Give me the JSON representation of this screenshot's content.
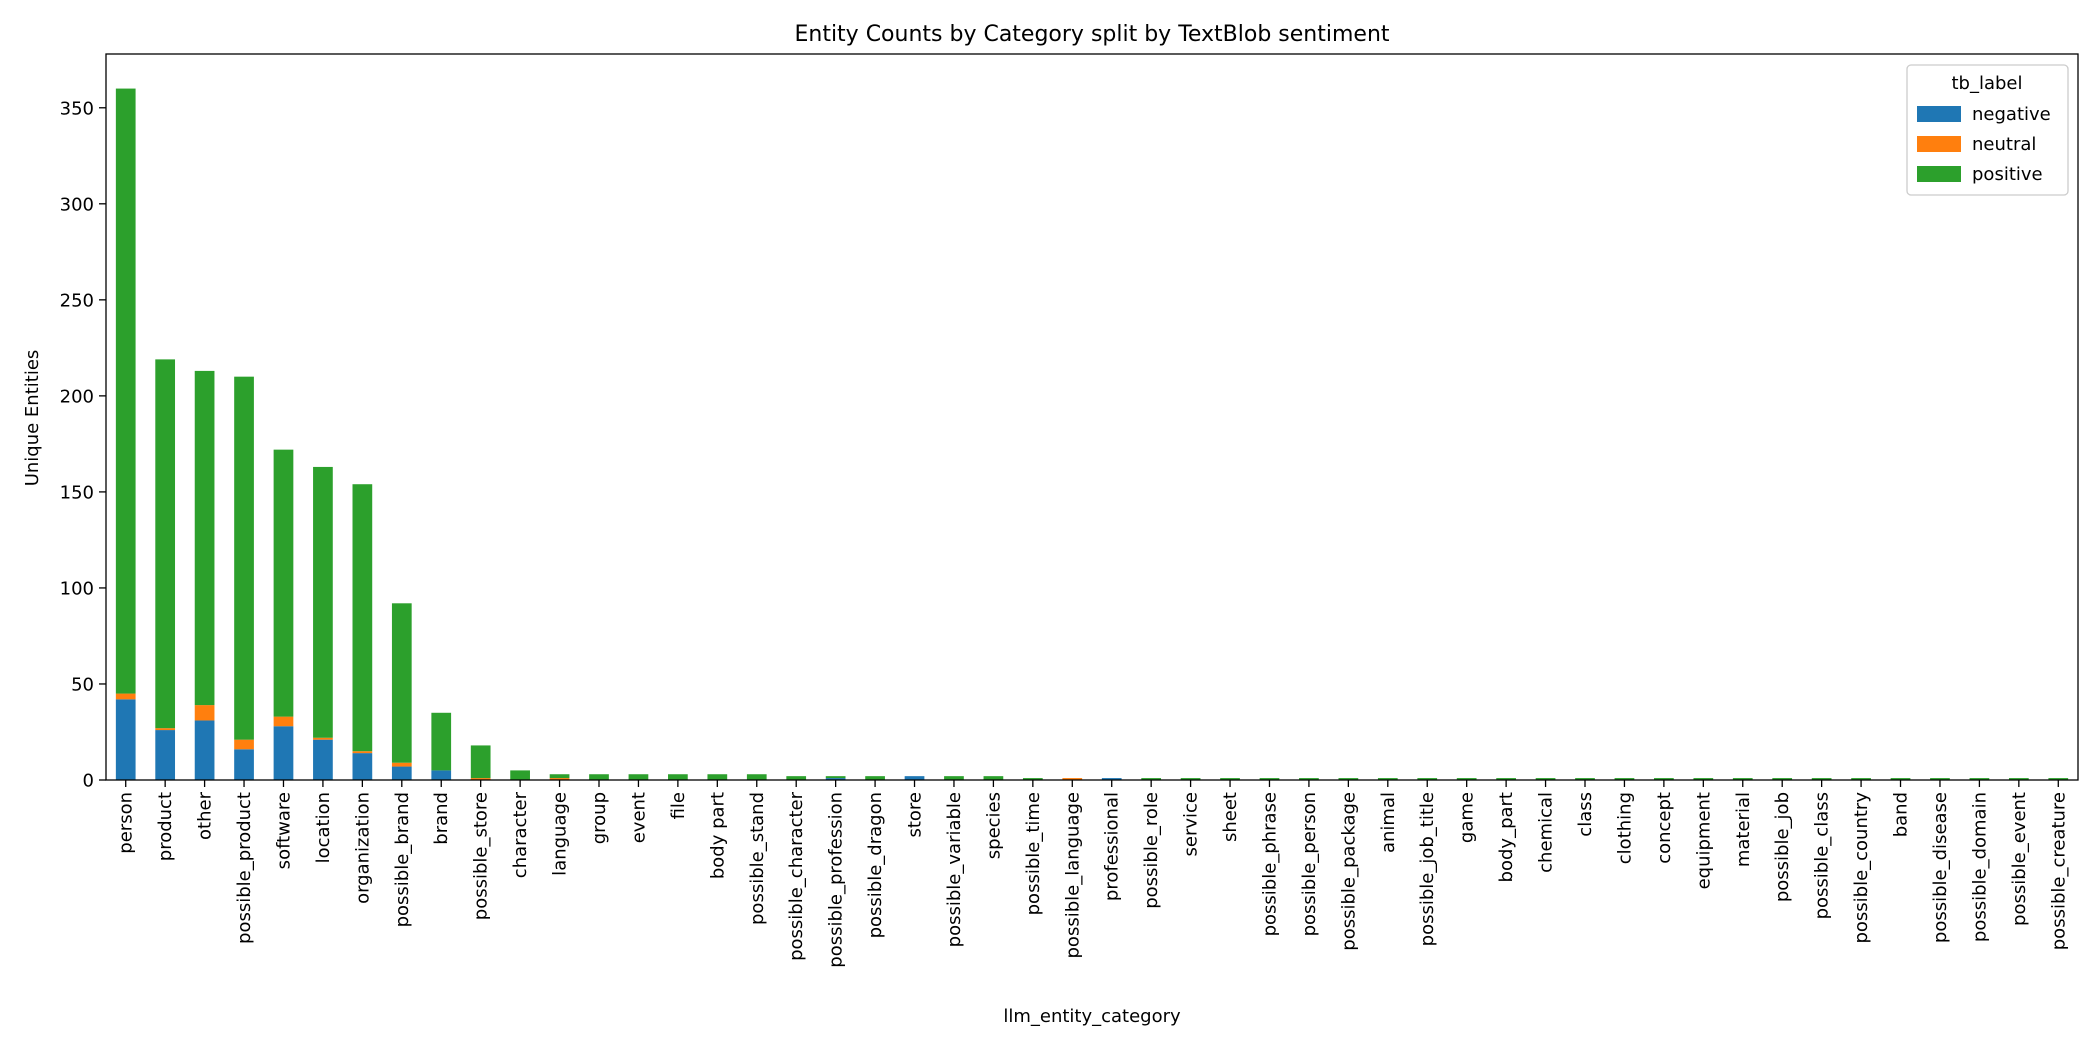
{
  "chart_data": {
    "type": "bar",
    "stacked": true,
    "title": "Entity Counts by Category split by TextBlob sentiment",
    "xlabel": "llm_entity_category",
    "ylabel": "Unique Entities",
    "ylim": [
      0,
      378
    ],
    "yticks": [
      0,
      50,
      100,
      150,
      200,
      250,
      300,
      350
    ],
    "grid": false,
    "legend": {
      "title": "tb_label",
      "placement": "top-right"
    },
    "categories": [
      "person",
      "product",
      "other",
      "possible_product",
      "software",
      "location",
      "organization",
      "possible_brand",
      "brand",
      "possible_store",
      "character",
      "language",
      "group",
      "event",
      "file",
      "body part",
      "possible_stand",
      "possible_character",
      "possible_profession",
      "possible_dragon",
      "store",
      "possible_variable",
      "species",
      "possible_time",
      "possible_language",
      "professional",
      "possible_role",
      "service",
      "sheet",
      "possible_phrase",
      "possible_person",
      "possible_package",
      "animal",
      "possible_job_title",
      "game",
      "body_part",
      "chemical",
      "class",
      "clothing",
      "concept",
      "equipment",
      "material",
      "possible_job",
      "possible_class",
      "possible_country",
      "band",
      "possible_disease",
      "possible_domain",
      "possible_event",
      "possible_creature"
    ],
    "series": [
      {
        "name": "negative",
        "color": "#1f77b4",
        "values": [
          42,
          26,
          31,
          16,
          28,
          21,
          14,
          7,
          5,
          0,
          0,
          0,
          0,
          0,
          0,
          0,
          0,
          0,
          1,
          0,
          2,
          0,
          0,
          0,
          0,
          1,
          0,
          0,
          0,
          0,
          0,
          0,
          0,
          0,
          0,
          0,
          0,
          0,
          0,
          0,
          0,
          0,
          0,
          0,
          0,
          0,
          0,
          0,
          0,
          0
        ]
      },
      {
        "name": "neutral",
        "color": "#ff7f0e",
        "values": [
          3,
          1,
          8,
          5,
          5,
          1,
          1,
          2,
          0,
          1,
          0,
          1,
          0,
          0,
          0,
          0,
          0,
          0,
          0,
          0,
          0,
          0,
          0,
          0,
          1,
          0,
          0,
          0,
          0,
          0,
          0,
          0,
          0,
          0,
          0,
          0,
          0,
          0,
          0,
          0,
          0,
          0,
          0,
          0,
          0,
          0,
          0,
          0,
          0,
          0
        ]
      },
      {
        "name": "positive",
        "color": "#2ca02c",
        "values": [
          315,
          192,
          174,
          189,
          139,
          141,
          139,
          83,
          30,
          17,
          5,
          2,
          3,
          3,
          3,
          3,
          3,
          2,
          1,
          2,
          0,
          2,
          2,
          1,
          0,
          0,
          1,
          1,
          1,
          1,
          1,
          1,
          1,
          1,
          1,
          1,
          1,
          1,
          1,
          1,
          1,
          1,
          1,
          1,
          1,
          1,
          1,
          1,
          1,
          1
        ]
      }
    ]
  }
}
